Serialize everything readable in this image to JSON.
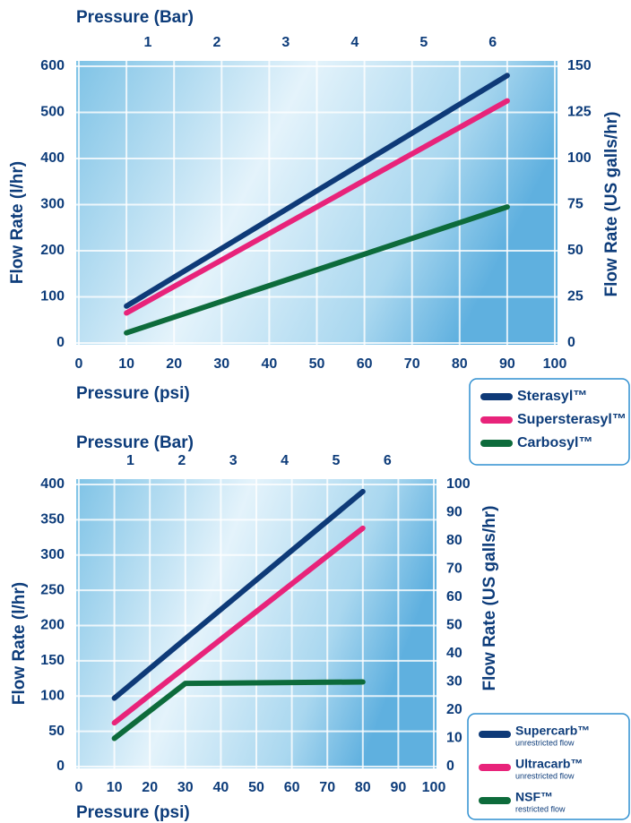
{
  "chart_data": [
    {
      "type": "line",
      "x2label": "Pressure (Bar)",
      "xlabel": "Pressure (psi)",
      "ylabel": "Flow Rate (l/hr)",
      "y2label": "Flow Rate (US galls/hr)",
      "x": [
        10,
        90
      ],
      "xlim": [
        0,
        100
      ],
      "xticks": [
        0,
        10,
        20,
        30,
        40,
        50,
        60,
        70,
        80,
        90,
        100
      ],
      "x2lim": [
        0,
        6.9
      ],
      "x2ticks": [
        1,
        2,
        3,
        4,
        5,
        6
      ],
      "ylim": [
        0,
        600
      ],
      "yticks": [
        0,
        100,
        200,
        300,
        400,
        500,
        600
      ],
      "y2lim": [
        0,
        150
      ],
      "y2ticks": [
        0,
        25,
        50,
        75,
        100,
        125,
        150
      ],
      "grid": true,
      "series": [
        {
          "name": "Sterasyl™",
          "color": "#0e3a78",
          "values": [
            80,
            580
          ]
        },
        {
          "name": "Supersterasyl™",
          "color": "#e8237a",
          "values": [
            65,
            525
          ]
        },
        {
          "name": "Carbosyl™",
          "color": "#0d6b3b",
          "values": [
            22,
            295
          ]
        }
      ]
    },
    {
      "type": "line",
      "x2label": "Pressure (Bar)",
      "xlabel": "Pressure (psi)",
      "ylabel": "Flow Rate (l/hr)",
      "y2label": "Flow Rate (US galls/hr)",
      "x": [
        10,
        30,
        80
      ],
      "xlim": [
        0,
        100
      ],
      "xticks": [
        0,
        10,
        20,
        30,
        40,
        50,
        60,
        70,
        80,
        90,
        100
      ],
      "x2lim": [
        0,
        6.9
      ],
      "x2ticks": [
        1,
        2,
        3,
        4,
        5,
        6
      ],
      "ylim": [
        0,
        400
      ],
      "yticks": [
        0,
        50,
        100,
        150,
        200,
        250,
        300,
        350,
        400
      ],
      "y2lim": [
        0,
        100
      ],
      "y2ticks": [
        0,
        10,
        20,
        30,
        40,
        50,
        60,
        70,
        80,
        90,
        100
      ],
      "grid": true,
      "series": [
        {
          "name": "Supercarb™",
          "sublabel": "unrestricted flow",
          "color": "#0e3a78",
          "values": [
            97,
            181,
            390
          ]
        },
        {
          "name": "Ultracarb™",
          "sublabel": "unrestricted flow",
          "color": "#e8237a",
          "values": [
            62,
            141,
            338
          ]
        },
        {
          "name": "NSF™",
          "sublabel": "restricted flow",
          "color": "#0d6b3b",
          "values": [
            40,
            118,
            120
          ]
        }
      ]
    }
  ]
}
